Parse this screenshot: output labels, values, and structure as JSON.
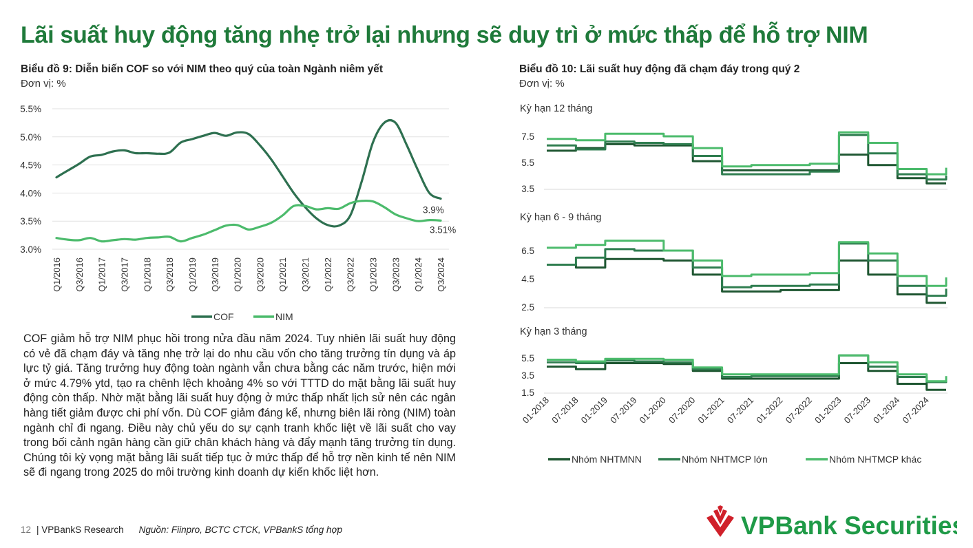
{
  "title": "Lãi suất huy động tăng nhẹ trở lại nhưng sẽ duy trì ở mức thấp để hỗ trợ NIM",
  "chart9": {
    "title": "Biểu đồ 9: Diễn biến COF so với NIM theo quý của toàn Ngành niêm yết",
    "unit": "Đơn vị: %"
  },
  "chart10": {
    "title": "Biểu đồ 10: Lãi suất huy động đã chạm đáy trong quý 2",
    "unit": "Đơn vị: %"
  },
  "paragraph": "COF giảm hỗ trợ NIM phục hồi trong nửa đầu năm 2024. Tuy nhiên lãi suất huy động có vẻ đã chạm đáy và tăng nhẹ trở lại do nhu cầu vốn cho tăng trưởng tín dụng và áp lực tỷ giá. Tăng trưởng huy động toàn ngành vẫn chưa bằng các năm trước, hiện mới ở mức 4.79% ytd, tạo ra chênh lệch khoảng 4% so với TTTD do mặt bằng lãi suất huy động còn thấp. Nhờ mặt bằng lãi suất huy động ở mức thấp nhất lịch sử nên các ngân hàng tiết giảm được chi phí vốn. Dù COF giảm đáng kể, nhưng biên lãi ròng (NIM) toàn ngành chỉ đi ngang. Điều này chủ yếu do sự cạnh tranh khốc liệt về lãi suất cho vay trong bối cảnh ngân hàng cần giữ chân khách hàng và đẩy mạnh tăng trưởng tín dụng. Chúng tôi kỳ vọng mặt bằng lãi suất tiếp tục ở mức thấp để hỗ trợ nền kinh tế nên NIM sẽ đi ngang trong 2025 do môi trường kinh doanh dự kiến khốc liệt hơn.",
  "footer": {
    "page": "12",
    "brand": "| VPBankS Research",
    "source": "Nguồn:  Fiinpro, BCTC CTCK,  VPBankS tổng hợp"
  },
  "logo": {
    "text": "VPBank Securities",
    "color": "#1f9a47",
    "mark_color": "#d0202a"
  },
  "colors": {
    "dark": "#1e5631",
    "mid": "#2e7d4f",
    "light": "#4cbb6c",
    "title_green": "#1f7a3a"
  },
  "chart_data": [
    {
      "type": "line",
      "title": "Biểu đồ 9: Diễn biến COF so với NIM theo quý của toàn Ngành niêm yết",
      "ylabel": "Đơn vị: %",
      "ylim": [
        3.0,
        5.5
      ],
      "yticks": [
        "3.0%",
        "3.5%",
        "4.0%",
        "4.5%",
        "5.0%",
        "5.5%"
      ],
      "xtick_labels": [
        "Q1/2016",
        "Q3/2016",
        "Q1/2017",
        "Q3/2017",
        "Q1/2018",
        "Q3/2018",
        "Q1/2019",
        "Q3/2019",
        "Q1/2020",
        "Q3/2020",
        "Q1/2021",
        "Q3/2021",
        "Q1/2022",
        "Q3/2022",
        "Q1/2023",
        "Q3/2023",
        "Q1/2024",
        "Q3/2024"
      ],
      "categories": [
        "Q1/2016",
        "Q2/2016",
        "Q3/2016",
        "Q4/2016",
        "Q1/2017",
        "Q2/2017",
        "Q3/2017",
        "Q4/2017",
        "Q1/2018",
        "Q2/2018",
        "Q3/2018",
        "Q4/2018",
        "Q1/2019",
        "Q2/2019",
        "Q3/2019",
        "Q4/2019",
        "Q1/2020",
        "Q2/2020",
        "Q3/2020",
        "Q4/2020",
        "Q1/2021",
        "Q2/2021",
        "Q3/2021",
        "Q4/2021",
        "Q1/2022",
        "Q2/2022",
        "Q3/2022",
        "Q4/2022",
        "Q1/2023",
        "Q2/2023",
        "Q3/2023",
        "Q4/2023",
        "Q1/2024",
        "Q2/2024",
        "Q3/2024"
      ],
      "legend_position": "bottom",
      "series": [
        {
          "name": "COF",
          "color": "#2e7050",
          "values": [
            4.28,
            4.4,
            4.52,
            4.65,
            4.68,
            4.74,
            4.76,
            4.71,
            4.71,
            4.7,
            4.72,
            4.9,
            4.96,
            5.02,
            5.07,
            5.02,
            5.08,
            5.05,
            4.85,
            4.6,
            4.3,
            4.0,
            3.75,
            3.55,
            3.43,
            3.42,
            3.6,
            4.2,
            4.9,
            5.25,
            5.25,
            4.85,
            4.4,
            4.0,
            3.9
          ]
        },
        {
          "name": "NIM",
          "color": "#4cbb6c",
          "values": [
            3.2,
            3.17,
            3.16,
            3.2,
            3.14,
            3.16,
            3.18,
            3.17,
            3.2,
            3.21,
            3.22,
            3.14,
            3.2,
            3.26,
            3.34,
            3.42,
            3.43,
            3.35,
            3.4,
            3.47,
            3.6,
            3.77,
            3.77,
            3.71,
            3.73,
            3.72,
            3.82,
            3.86,
            3.85,
            3.75,
            3.62,
            3.55,
            3.5,
            3.52,
            3.51
          ]
        }
      ],
      "annotations": [
        "3.9%",
        "3.51%"
      ]
    },
    {
      "type": "line",
      "title": "Kỳ hạn 12 tháng",
      "ylim": [
        3.5,
        7.5
      ],
      "yticks": [
        "3.5",
        "5.5",
        "7.5"
      ],
      "x_range": [
        "01-2018",
        "11-2024"
      ],
      "series": [
        {
          "name": "Nhóm NHTMNN",
          "x": [
            "01-2018",
            "07-2018",
            "01-2019",
            "07-2019",
            "01-2020",
            "07-2020",
            "01-2021",
            "07-2021",
            "01-2022",
            "07-2022",
            "01-2023",
            "07-2023",
            "01-2024",
            "07-2024",
            "11-2024"
          ],
          "values": [
            6.4,
            6.6,
            6.9,
            6.8,
            6.8,
            5.6,
            4.9,
            4.9,
            4.9,
            4.9,
            6.1,
            5.3,
            4.3,
            3.9,
            3.9
          ]
        },
        {
          "name": "Nhóm NHTMCP lớn",
          "x": [
            "01-2018",
            "07-2018",
            "01-2019",
            "07-2019",
            "01-2020",
            "07-2020",
            "01-2021",
            "07-2021",
            "01-2022",
            "07-2022",
            "01-2023",
            "07-2023",
            "01-2024",
            "07-2024",
            "11-2024"
          ],
          "values": [
            6.8,
            6.5,
            7.1,
            7.0,
            6.9,
            6.0,
            4.6,
            4.6,
            4.6,
            4.8,
            7.6,
            6.2,
            4.6,
            4.2,
            4.5
          ]
        },
        {
          "name": "Nhóm NHTMCP khác",
          "x": [
            "01-2018",
            "07-2018",
            "01-2019",
            "07-2019",
            "01-2020",
            "07-2020",
            "01-2021",
            "07-2021",
            "01-2022",
            "07-2022",
            "01-2023",
            "07-2023",
            "01-2024",
            "07-2024",
            "11-2024"
          ],
          "values": [
            7.3,
            7.2,
            7.7,
            7.7,
            7.5,
            6.6,
            5.2,
            5.3,
            5.3,
            5.4,
            7.8,
            7.0,
            5.0,
            4.6,
            5.1
          ]
        }
      ]
    },
    {
      "type": "line",
      "title": "Kỳ hạn 6 - 9 tháng",
      "ylim": [
        2.5,
        6.5
      ],
      "yticks": [
        "2.5",
        "4.5",
        "6.5"
      ],
      "x_range": [
        "01-2018",
        "11-2024"
      ],
      "series": [
        {
          "name": "Nhóm NHTMNN",
          "x": [
            "01-2018",
            "07-2018",
            "01-2019",
            "07-2019",
            "01-2020",
            "07-2020",
            "01-2021",
            "07-2021",
            "01-2022",
            "07-2022",
            "01-2023",
            "07-2023",
            "01-2024",
            "07-2024",
            "11-2024"
          ],
          "values": [
            5.5,
            5.3,
            5.9,
            5.9,
            5.8,
            4.8,
            3.6,
            3.6,
            3.7,
            3.7,
            5.8,
            4.8,
            3.4,
            2.8,
            2.8
          ]
        },
        {
          "name": "Nhóm NHTMCP lớn",
          "x": [
            "01-2018",
            "07-2018",
            "01-2019",
            "07-2019",
            "01-2020",
            "07-2020",
            "01-2021",
            "07-2021",
            "01-2022",
            "07-2022",
            "01-2023",
            "07-2023",
            "01-2024",
            "07-2024",
            "11-2024"
          ],
          "values": [
            5.5,
            6.0,
            6.6,
            6.5,
            6.5,
            5.3,
            3.9,
            4.0,
            4.0,
            4.1,
            7.0,
            5.8,
            4.0,
            3.3,
            3.8
          ]
        },
        {
          "name": "Nhóm NHTMCP khác",
          "x": [
            "01-2018",
            "07-2018",
            "01-2019",
            "07-2019",
            "01-2020",
            "07-2020",
            "01-2021",
            "07-2021",
            "01-2022",
            "07-2022",
            "01-2023",
            "07-2023",
            "01-2024",
            "07-2024",
            "11-2024"
          ],
          "values": [
            6.7,
            6.9,
            7.2,
            7.2,
            6.5,
            5.8,
            4.7,
            4.8,
            4.8,
            4.9,
            7.1,
            6.3,
            4.7,
            4.0,
            4.6
          ]
        }
      ]
    },
    {
      "type": "line",
      "title": "Kỳ hạn 3 tháng",
      "ylim": [
        1.5,
        5.5
      ],
      "yticks": [
        "1.5",
        "3.5",
        "5.5"
      ],
      "xtick_labels": [
        "01-2018",
        "07-2018",
        "01-2019",
        "07-2019",
        "01-2020",
        "07-2020",
        "01-2021",
        "07-2021",
        "01-2022",
        "07-2022",
        "01-2023",
        "07-2023",
        "01-2024",
        "07-2024"
      ],
      "x_range": [
        "01-2018",
        "11-2024"
      ],
      "legend_position": "bottom",
      "series": [
        {
          "name": "Nhóm NHTMNN",
          "color": "#1e5631",
          "x": [
            "01-2018",
            "07-2018",
            "01-2019",
            "07-2019",
            "01-2020",
            "07-2020",
            "01-2021",
            "07-2021",
            "01-2022",
            "07-2022",
            "01-2023",
            "07-2023",
            "01-2024",
            "07-2024",
            "11-2024"
          ],
          "values": [
            4.5,
            4.2,
            4.9,
            4.9,
            4.8,
            4.0,
            3.1,
            3.1,
            3.1,
            3.1,
            4.9,
            4.0,
            2.5,
            1.8,
            1.8
          ]
        },
        {
          "name": "Nhóm NHTMCP lớn",
          "color": "#2e7d4f",
          "x": [
            "01-2018",
            "07-2018",
            "01-2019",
            "07-2019",
            "01-2020",
            "07-2020",
            "01-2021",
            "07-2021",
            "01-2022",
            "07-2022",
            "01-2023",
            "07-2023",
            "01-2024",
            "07-2024",
            "11-2024"
          ],
          "values": [
            5.0,
            4.9,
            5.2,
            5.1,
            5.0,
            4.2,
            3.3,
            3.4,
            3.4,
            3.4,
            5.8,
            4.5,
            3.3,
            2.7,
            3.2
          ]
        },
        {
          "name": "Nhóm NHTMCP khác",
          "color": "#4cbb6c",
          "x": [
            "01-2018",
            "07-2018",
            "01-2019",
            "07-2019",
            "01-2020",
            "07-2020",
            "01-2021",
            "07-2021",
            "01-2022",
            "07-2022",
            "01-2023",
            "07-2023",
            "01-2024",
            "07-2024",
            "11-2024"
          ],
          "values": [
            5.3,
            5.1,
            5.4,
            5.4,
            5.3,
            4.4,
            3.6,
            3.6,
            3.6,
            3.6,
            5.8,
            5.0,
            3.6,
            2.8,
            3.4
          ]
        }
      ]
    }
  ]
}
